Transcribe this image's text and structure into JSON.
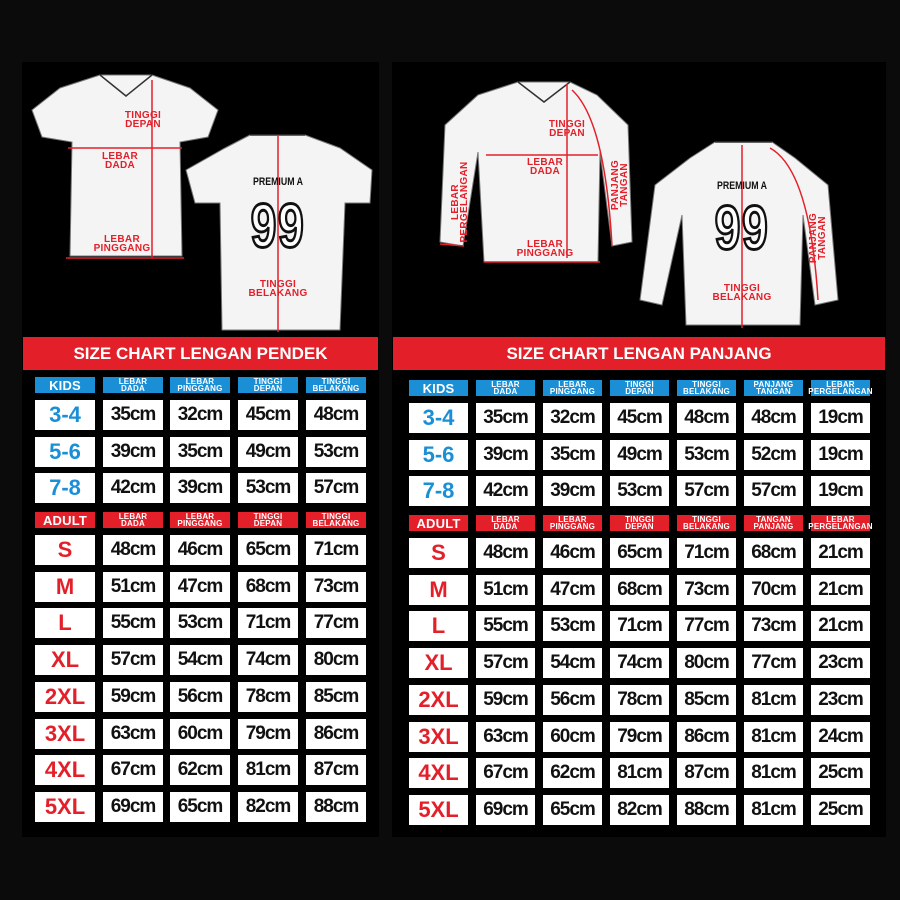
{
  "colors": {
    "red": "#e3202a",
    "blue": "#1a8fd6",
    "background": "#000000"
  },
  "jerseys": {
    "short": {
      "tinggi_depan": [
        "TINGGI",
        "DEPAN"
      ],
      "lebar_dada": [
        "LEBAR",
        "DADA"
      ],
      "lebar_pinggang": [
        "LEBAR",
        "PINGGANG"
      ],
      "tinggi_belakang": [
        "TINGGI",
        "BELAKANG"
      ],
      "name": "PREMIUM A",
      "number": "99"
    },
    "long": {
      "tinggi_depan": [
        "TINGGI",
        "DEPAN"
      ],
      "lebar_dada": [
        "LEBAR",
        "DADA"
      ],
      "lebar_pinggang": [
        "LEBAR",
        "PINGGANG"
      ],
      "lebar_pergelangan": [
        "LEBAR",
        "PERGELANGAN"
      ],
      "panjang_tangan": [
        "PANJANG",
        "TANGAN"
      ],
      "panjang_tangan_back": [
        "PANJANG",
        "TANGAN"
      ],
      "tinggi_belakang": [
        "TINGGI",
        "BELAKANG"
      ],
      "name": "PREMIUM A",
      "number": "99"
    }
  },
  "charts": [
    {
      "title": "SIZE CHART LENGAN PENDEK",
      "kids_header": [
        [
          "KIDS"
        ],
        [
          "LEBAR",
          "DADA"
        ],
        [
          "LEBAR",
          "PINGGANG"
        ],
        [
          "TINGGI",
          "DEPAN"
        ],
        [
          "TINGGI",
          "BELAKANG"
        ]
      ],
      "kids_rows": [
        [
          "3-4",
          "35cm",
          "32cm",
          "45cm",
          "48cm"
        ],
        [
          "5-6",
          "39cm",
          "35cm",
          "49cm",
          "53cm"
        ],
        [
          "7-8",
          "42cm",
          "39cm",
          "53cm",
          "57cm"
        ]
      ],
      "adult_header": [
        [
          "ADULT"
        ],
        [
          "LEBAR",
          "DADA"
        ],
        [
          "LEBAR",
          "PINGGANG"
        ],
        [
          "TINGGI",
          "DEPAN"
        ],
        [
          "TINGGI",
          "BELAKANG"
        ]
      ],
      "adult_rows": [
        [
          "S",
          "48cm",
          "46cm",
          "65cm",
          "71cm"
        ],
        [
          "M",
          "51cm",
          "47cm",
          "68cm",
          "73cm"
        ],
        [
          "L",
          "55cm",
          "53cm",
          "71cm",
          "77cm"
        ],
        [
          "XL",
          "57cm",
          "54cm",
          "74cm",
          "80cm"
        ],
        [
          "2XL",
          "59cm",
          "56cm",
          "78cm",
          "85cm"
        ],
        [
          "3XL",
          "63cm",
          "60cm",
          "79cm",
          "86cm"
        ],
        [
          "4XL",
          "67cm",
          "62cm",
          "81cm",
          "87cm"
        ],
        [
          "5XL",
          "69cm",
          "65cm",
          "82cm",
          "88cm"
        ]
      ]
    },
    {
      "title": "SIZE CHART LENGAN PANJANG",
      "kids_header": [
        [
          "KIDS"
        ],
        [
          "LEBAR",
          "DADA"
        ],
        [
          "LEBAR",
          "PINGGANG"
        ],
        [
          "TINGGI",
          "DEPAN"
        ],
        [
          "TINGGI",
          "BELAKANG"
        ],
        [
          "PANJANG",
          "TANGAN"
        ],
        [
          "LEBAR",
          "PERGELANGAN"
        ]
      ],
      "kids_rows": [
        [
          "3-4",
          "35cm",
          "32cm",
          "45cm",
          "48cm",
          "48cm",
          "19cm"
        ],
        [
          "5-6",
          "39cm",
          "35cm",
          "49cm",
          "53cm",
          "52cm",
          "19cm"
        ],
        [
          "7-8",
          "42cm",
          "39cm",
          "53cm",
          "57cm",
          "57cm",
          "19cm"
        ]
      ],
      "adult_header": [
        [
          "ADULT"
        ],
        [
          "LEBAR",
          "DADA"
        ],
        [
          "LEBAR",
          "PINGGANG"
        ],
        [
          "TINGGI",
          "DEPAN"
        ],
        [
          "TINGGI",
          "BELAKANG"
        ],
        [
          "TANGAN",
          "PANJANG"
        ],
        [
          "LEBAR",
          "PERGELANGAN"
        ]
      ],
      "adult_rows": [
        [
          "S",
          "48cm",
          "46cm",
          "65cm",
          "71cm",
          "68cm",
          "21cm"
        ],
        [
          "M",
          "51cm",
          "47cm",
          "68cm",
          "73cm",
          "70cm",
          "21cm"
        ],
        [
          "L",
          "55cm",
          "53cm",
          "71cm",
          "77cm",
          "73cm",
          "21cm"
        ],
        [
          "XL",
          "57cm",
          "54cm",
          "74cm",
          "80cm",
          "77cm",
          "23cm"
        ],
        [
          "2XL",
          "59cm",
          "56cm",
          "78cm",
          "85cm",
          "81cm",
          "23cm"
        ],
        [
          "3XL",
          "63cm",
          "60cm",
          "79cm",
          "86cm",
          "81cm",
          "24cm"
        ],
        [
          "4XL",
          "67cm",
          "62cm",
          "81cm",
          "87cm",
          "81cm",
          "25cm"
        ],
        [
          "5XL",
          "69cm",
          "65cm",
          "82cm",
          "88cm",
          "81cm",
          "25cm"
        ]
      ]
    }
  ]
}
